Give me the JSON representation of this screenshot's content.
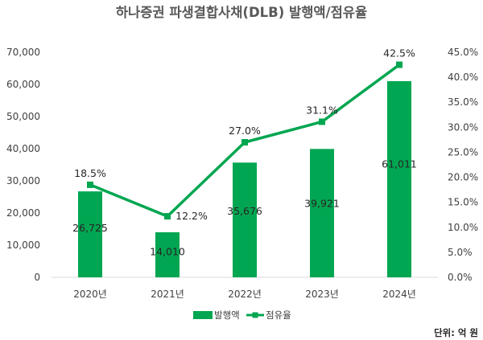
{
  "chart_data": {
    "type": "bar",
    "title": "하나증권 파생결합사채(DLB) 발행액/점유율",
    "categories": [
      "2020년",
      "2021년",
      "2022년",
      "2023년",
      "2024년"
    ],
    "series": [
      {
        "name": "발행액",
        "type": "bar",
        "axis": "left",
        "values": [
          26725,
          14010,
          35676,
          39921,
          61011
        ],
        "value_labels": [
          "26,725",
          "14,010",
          "35,676",
          "39,921",
          "61,011"
        ],
        "color": "#00A651"
      },
      {
        "name": "점유율",
        "type": "line",
        "axis": "right",
        "values": [
          18.5,
          12.2,
          27.0,
          31.1,
          42.5
        ],
        "value_labels": [
          "18.5%",
          "12.2%",
          "27.0%",
          "31.1%",
          "42.5%"
        ],
        "color": "#00A651"
      }
    ],
    "y_left": {
      "lim": [
        0,
        70000
      ],
      "ticks": [
        0,
        10000,
        20000,
        30000,
        40000,
        50000,
        60000,
        70000
      ],
      "tick_labels": [
        "0",
        "10,000",
        "20,000",
        "30,000",
        "40,000",
        "50,000",
        "60,000",
        "70,000"
      ]
    },
    "y_right": {
      "lim": [
        0,
        45
      ],
      "ticks": [
        0,
        5,
        10,
        15,
        20,
        25,
        30,
        35,
        40,
        45
      ],
      "tick_labels": [
        "0.0%",
        "5.0%",
        "10.0%",
        "15.0%",
        "20.0%",
        "25.0%",
        "30.0%",
        "35.0%",
        "40.0%",
        "45.0%"
      ]
    },
    "grid": false,
    "legend_position": "bottom",
    "unit_note": "단위: 억 원"
  }
}
